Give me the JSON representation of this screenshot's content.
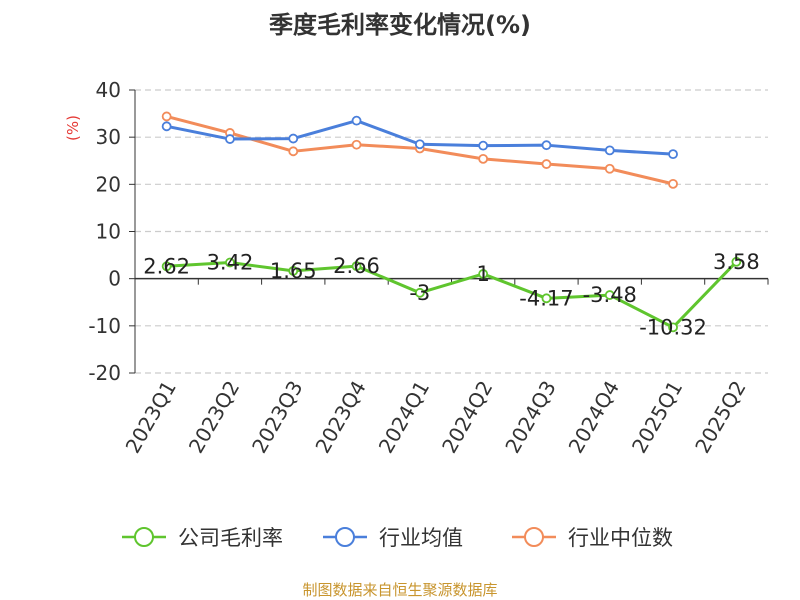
{
  "chart_data": {
    "type": "line",
    "title": "季度毛利率变化情况(%)",
    "ylabel": "(%)",
    "categories": [
      "2023Q1",
      "2023Q2",
      "2023Q3",
      "2023Q4",
      "2024Q1",
      "2024Q2",
      "2024Q3",
      "2024Q4",
      "2025Q1",
      "2025Q2"
    ],
    "yticks": [
      -20,
      -10,
      0,
      10,
      20,
      30,
      40
    ],
    "ylim": [
      -20,
      40
    ],
    "grid": true,
    "legend_position": "bottom",
    "series": [
      {
        "name": "公司毛利率",
        "color": "#5fc52e",
        "values": [
          2.62,
          3.42,
          1.65,
          2.66,
          -3,
          1,
          -4.17,
          -3.48,
          -10.32,
          3.58
        ],
        "labels": [
          "2.62",
          "3.42",
          "1.65",
          "2.66",
          "-3",
          "1",
          "-4.17",
          "-3.48",
          "-10.32",
          "3.58"
        ]
      },
      {
        "name": "行业均值",
        "color": "#4a7fdb",
        "values": [
          32.3,
          29.6,
          29.7,
          33.5,
          28.5,
          28.2,
          28.3,
          27.2,
          26.4,
          null
        ]
      },
      {
        "name": "行业中位数",
        "color": "#f28c5a",
        "values": [
          34.4,
          30.9,
          27.0,
          28.4,
          27.6,
          25.4,
          24.3,
          23.3,
          20.1,
          null
        ]
      }
    ]
  },
  "footer": {
    "source": "制图数据来自恒生聚源数据库"
  }
}
